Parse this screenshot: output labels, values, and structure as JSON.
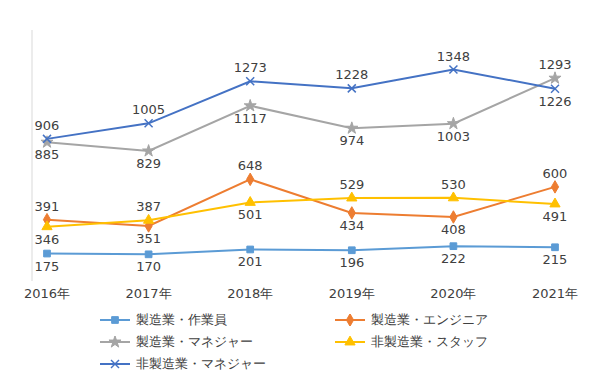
{
  "chart_data": {
    "type": "line",
    "categories": [
      "2016年",
      "2017年",
      "2018年",
      "2019年",
      "2020年",
      "2021年"
    ],
    "ylim": [
      0,
      1600
    ],
    "grid": false,
    "legend": "bottom",
    "data_labels": true,
    "tick_labels": "x",
    "series": [
      {
        "name": "製造業・作業員",
        "color": "#5B9BD5",
        "marker": "square",
        "values": [
          175,
          170,
          201,
          196,
          222,
          215
        ]
      },
      {
        "name": "製造業・エンジニア",
        "color": "#ED7D31",
        "marker": "diamond",
        "values": [
          391,
          351,
          648,
          434,
          408,
          600
        ]
      },
      {
        "name": "製造業・マネジャー",
        "color": "#A5A5A5",
        "marker": "star",
        "values": [
          885,
          829,
          1117,
          974,
          1003,
          1293
        ]
      },
      {
        "name": "非製造業・スタッフ",
        "color": "#FFC000",
        "marker": "triangle",
        "values": [
          346,
          387,
          501,
          529,
          530,
          491
        ]
      },
      {
        "name": "非製造業・マネジャー",
        "color": "#4472C4",
        "marker": "x",
        "values": [
          906,
          1005,
          1273,
          1228,
          1348,
          1226
        ]
      }
    ]
  }
}
